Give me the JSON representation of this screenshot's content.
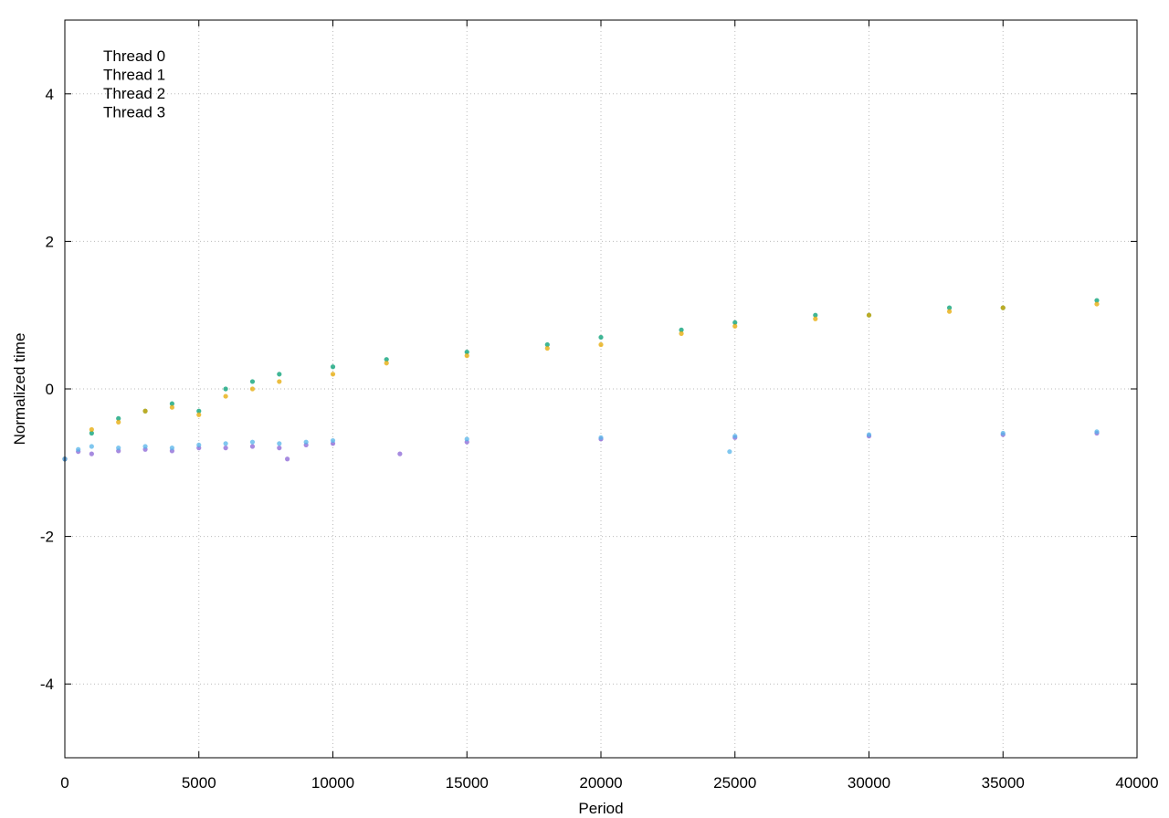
{
  "chart_data": {
    "type": "scatter",
    "title": "",
    "xlabel": "Period",
    "ylabel": "Normalized time",
    "xlim": [
      0,
      40000
    ],
    "ylim": [
      -5,
      5
    ],
    "x_ticks": [
      0,
      5000,
      10000,
      15000,
      20000,
      25000,
      30000,
      35000,
      40000
    ],
    "y_ticks": [
      -4,
      -2,
      0,
      2,
      4
    ],
    "grid": true,
    "grid_style": "dotted",
    "legend_position": "top-left",
    "series": [
      {
        "name": "Thread 0",
        "color": "#8a64d6",
        "marker": "dot",
        "points": [
          [
            0,
            -0.95
          ],
          [
            500,
            -0.85
          ],
          [
            1000,
            -0.88
          ],
          [
            2000,
            -0.84
          ],
          [
            3000,
            -0.82
          ],
          [
            4000,
            -0.84
          ],
          [
            5000,
            -0.8
          ],
          [
            6000,
            -0.8
          ],
          [
            7000,
            -0.78
          ],
          [
            8000,
            -0.8
          ],
          [
            8300,
            -0.95
          ],
          [
            9000,
            -0.76
          ],
          [
            10000,
            -0.74
          ],
          [
            12500,
            -0.88
          ],
          [
            15000,
            -0.72
          ],
          [
            20000,
            -0.68
          ],
          [
            25000,
            -0.66
          ],
          [
            30000,
            -0.64
          ],
          [
            35000,
            -0.62
          ],
          [
            38500,
            -0.6
          ]
        ]
      },
      {
        "name": "Thread 1",
        "color": "#56b4e9",
        "marker": "dot",
        "points": [
          [
            0,
            -0.95
          ],
          [
            500,
            -0.82
          ],
          [
            1000,
            -0.78
          ],
          [
            2000,
            -0.8
          ],
          [
            3000,
            -0.78
          ],
          [
            4000,
            -0.8
          ],
          [
            5000,
            -0.76
          ],
          [
            6000,
            -0.74
          ],
          [
            7000,
            -0.72
          ],
          [
            8000,
            -0.74
          ],
          [
            9000,
            -0.72
          ],
          [
            10000,
            -0.7
          ],
          [
            15000,
            -0.68
          ],
          [
            20000,
            -0.66
          ],
          [
            24800,
            -0.85
          ],
          [
            25000,
            -0.64
          ],
          [
            30000,
            -0.62
          ],
          [
            35000,
            -0.6
          ],
          [
            38500,
            -0.58
          ]
        ]
      },
      {
        "name": "Thread 2",
        "color": "#009e73",
        "marker": "dot",
        "points": [
          [
            0,
            -0.95
          ],
          [
            1000,
            -0.6
          ],
          [
            2000,
            -0.4
          ],
          [
            3000,
            -0.3
          ],
          [
            4000,
            -0.2
          ],
          [
            5000,
            -0.3
          ],
          [
            6000,
            0.0
          ],
          [
            7000,
            0.1
          ],
          [
            8000,
            0.2
          ],
          [
            10000,
            0.3
          ],
          [
            12000,
            0.4
          ],
          [
            15000,
            0.5
          ],
          [
            18000,
            0.6
          ],
          [
            20000,
            0.7
          ],
          [
            23000,
            0.8
          ],
          [
            25000,
            0.9
          ],
          [
            28000,
            1.0
          ],
          [
            30000,
            1.0
          ],
          [
            33000,
            1.1
          ],
          [
            35000,
            1.1
          ],
          [
            38500,
            1.2
          ]
        ]
      },
      {
        "name": "Thread 3",
        "color": "#e6a800",
        "marker": "dot",
        "points": [
          [
            0,
            -0.95
          ],
          [
            1000,
            -0.55
          ],
          [
            2000,
            -0.45
          ],
          [
            3000,
            -0.3
          ],
          [
            4000,
            -0.25
          ],
          [
            5000,
            -0.35
          ],
          [
            6000,
            -0.1
          ],
          [
            7000,
            0.0
          ],
          [
            8000,
            0.1
          ],
          [
            10000,
            0.2
          ],
          [
            12000,
            0.35
          ],
          [
            15000,
            0.45
          ],
          [
            18000,
            0.55
          ],
          [
            20000,
            0.6
          ],
          [
            23000,
            0.75
          ],
          [
            25000,
            0.85
          ],
          [
            28000,
            0.95
          ],
          [
            30000,
            1.0
          ],
          [
            33000,
            1.05
          ],
          [
            35000,
            1.1
          ],
          [
            38500,
            1.15
          ]
        ]
      }
    ]
  }
}
